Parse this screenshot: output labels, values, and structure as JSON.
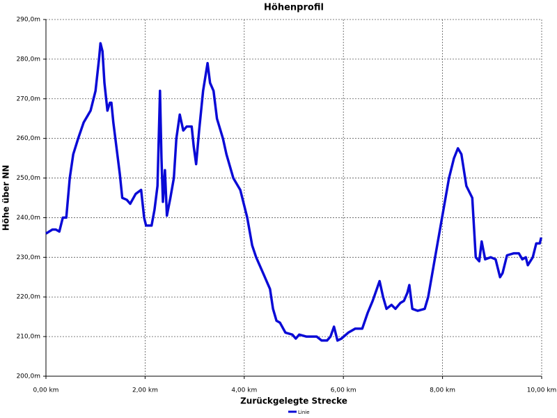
{
  "chart_data": {
    "type": "line",
    "title": "Höhenprofil",
    "x_label": "Zurückgelegte Strecke",
    "y_label": "Höhe über NN",
    "xlim": [
      0,
      10
    ],
    "ylim": [
      200,
      290
    ],
    "xticks": [
      {
        "value": 0,
        "label": "0,00 km"
      },
      {
        "value": 2,
        "label": "2,00 km"
      },
      {
        "value": 4,
        "label": "4,00 km"
      },
      {
        "value": 6,
        "label": "6,00 km"
      },
      {
        "value": 8,
        "label": "8,00 km"
      },
      {
        "value": 10,
        "label": "10,00 km"
      }
    ],
    "yticks": [
      {
        "value": 200,
        "label": "200,0m"
      },
      {
        "value": 210,
        "label": "210,0m"
      },
      {
        "value": 220,
        "label": "220,0m"
      },
      {
        "value": 230,
        "label": "230,0m"
      },
      {
        "value": 240,
        "label": "240,0m"
      },
      {
        "value": 250,
        "label": "250,0m"
      },
      {
        "value": 260,
        "label": "260,0m"
      },
      {
        "value": 270,
        "label": "270,0m"
      },
      {
        "value": 280,
        "label": "280,0m"
      },
      {
        "value": 290,
        "label": "290,0m"
      }
    ],
    "grid": true,
    "legend": "bottom",
    "x": [
      0,
      0.13,
      0.2,
      0.27,
      0.34,
      0.41,
      0.48,
      0.55,
      0.65,
      0.76,
      0.9,
      1.0,
      1.07,
      1.1,
      1.14,
      1.18,
      1.24,
      1.29,
      1.32,
      1.36,
      1.43,
      1.49,
      1.54,
      1.63,
      1.7,
      1.81,
      1.92,
      1.98,
      2.02,
      2.13,
      2.19,
      2.25,
      2.3,
      2.33,
      2.36,
      2.4,
      2.44,
      2.51,
      2.58,
      2.63,
      2.7,
      2.77,
      2.84,
      2.94,
      2.98,
      3.03,
      3.09,
      3.17,
      3.26,
      3.31,
      3.38,
      3.45,
      3.57,
      3.64,
      3.78,
      3.92,
      4.06,
      4.16,
      4.24,
      4.38,
      4.52,
      4.58,
      4.65,
      4.72,
      4.83,
      4.97,
      5.04,
      5.11,
      5.25,
      5.46,
      5.56,
      5.67,
      5.74,
      5.81,
      5.88,
      5.96,
      6.1,
      6.24,
      6.38,
      6.49,
      6.59,
      6.73,
      6.8,
      6.87,
      6.97,
      7.05,
      7.15,
      7.22,
      7.29,
      7.33,
      7.39,
      7.5,
      7.64,
      7.71,
      7.85,
      7.99,
      8.13,
      8.23,
      8.31,
      8.38,
      8.48,
      8.6,
      8.67,
      8.74,
      8.79,
      8.86,
      8.97,
      9.07,
      9.16,
      9.21,
      9.3,
      9.44,
      9.54,
      9.61,
      9.68,
      9.72,
      9.82,
      9.89,
      9.96,
      9.99
    ],
    "series": [
      {
        "name": "Linie",
        "color": "#0a0ad6",
        "values": [
          236,
          237,
          237,
          236.5,
          240,
          240,
          250,
          256,
          260,
          264,
          267,
          272,
          280,
          284,
          282,
          274,
          267,
          269,
          269,
          264,
          257,
          251,
          245,
          244.5,
          243.5,
          246,
          247,
          240,
          238,
          238,
          242,
          248,
          272,
          255,
          244,
          252,
          240.5,
          245,
          250,
          260,
          266,
          262,
          263,
          263,
          258,
          253.5,
          262,
          272,
          279,
          274,
          272,
          265,
          260,
          256,
          250,
          247,
          240,
          233,
          230,
          226,
          222,
          217,
          214,
          213.5,
          211,
          210.5,
          209.5,
          210.5,
          210,
          210,
          209,
          209,
          210,
          212.5,
          209,
          209.5,
          211,
          212,
          212,
          216,
          219,
          224,
          220,
          217,
          218,
          217,
          218.5,
          219,
          221,
          223,
          217,
          216.5,
          217,
          220,
          230,
          240,
          250,
          255,
          257.5,
          256,
          248,
          245,
          230,
          229,
          234,
          229.5,
          230,
          229.5,
          225,
          226,
          230.5,
          231,
          231,
          229.5,
          230,
          228,
          230,
          233.5,
          233.5,
          235
        ]
      }
    ]
  }
}
